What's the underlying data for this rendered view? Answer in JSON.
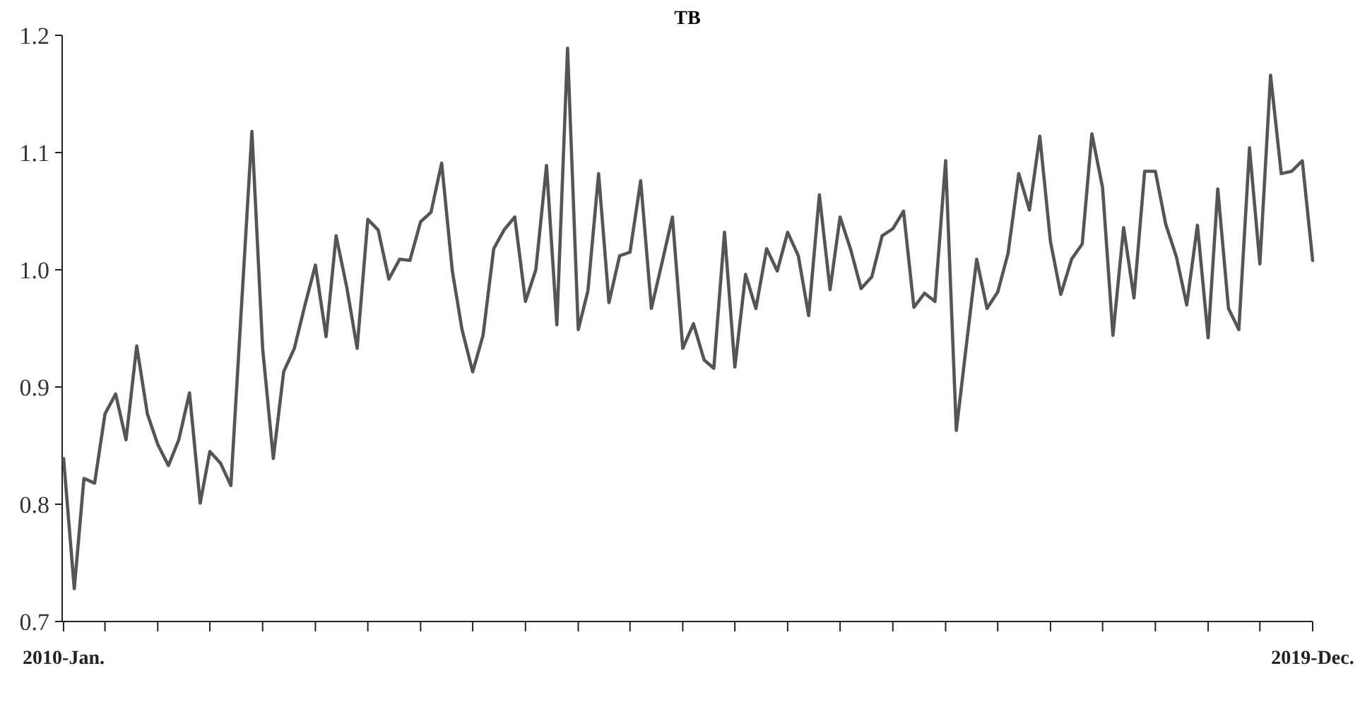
{
  "chart_data": {
    "type": "line",
    "title": "TB",
    "x": [
      "2010-01",
      "2010-02",
      "2010-03",
      "2010-04",
      "2010-05",
      "2010-06",
      "2010-07",
      "2010-08",
      "2010-09",
      "2010-10",
      "2010-11",
      "2010-12",
      "2011-01",
      "2011-02",
      "2011-03",
      "2011-04",
      "2011-05",
      "2011-06",
      "2011-07",
      "2011-08",
      "2011-09",
      "2011-10",
      "2011-11",
      "2011-12",
      "2012-01",
      "2012-02",
      "2012-03",
      "2012-04",
      "2012-05",
      "2012-06",
      "2012-07",
      "2012-08",
      "2012-09",
      "2012-10",
      "2012-11",
      "2012-12",
      "2013-01",
      "2013-02",
      "2013-03",
      "2013-04",
      "2013-05",
      "2013-06",
      "2013-07",
      "2013-08",
      "2013-09",
      "2013-10",
      "2013-11",
      "2013-12",
      "2014-01",
      "2014-02",
      "2014-03",
      "2014-04",
      "2014-05",
      "2014-06",
      "2014-07",
      "2014-08",
      "2014-09",
      "2014-10",
      "2014-11",
      "2014-12",
      "2015-01",
      "2015-02",
      "2015-03",
      "2015-04",
      "2015-05",
      "2015-06",
      "2015-07",
      "2015-08",
      "2015-09",
      "2015-10",
      "2015-11",
      "2015-12",
      "2016-01",
      "2016-02",
      "2016-03",
      "2016-04",
      "2016-05",
      "2016-06",
      "2016-07",
      "2016-08",
      "2016-09",
      "2016-10",
      "2016-11",
      "2016-12",
      "2017-01",
      "2017-02",
      "2017-03",
      "2017-04",
      "2017-05",
      "2017-06",
      "2017-07",
      "2017-08",
      "2017-09",
      "2017-10",
      "2017-11",
      "2017-12",
      "2018-01",
      "2018-02",
      "2018-03",
      "2018-04",
      "2018-05",
      "2018-06",
      "2018-07",
      "2018-08",
      "2018-09",
      "2018-10",
      "2018-11",
      "2018-12",
      "2019-01",
      "2019-02",
      "2019-03",
      "2019-04",
      "2019-05",
      "2019-06",
      "2019-07",
      "2019-08",
      "2019-09",
      "2019-10",
      "2019-11",
      "2019-12"
    ],
    "series": [
      {
        "color": "#555555",
        "values": [
          0.839,
          0.728,
          0.822,
          0.818,
          0.877,
          0.894,
          0.855,
          0.935,
          0.877,
          0.851,
          0.833,
          0.855,
          0.895,
          0.801,
          0.845,
          0.835,
          0.816,
          0.97,
          1.118,
          0.933,
          0.839,
          0.913,
          0.933,
          0.969,
          1.004,
          0.943,
          1.029,
          0.985,
          0.933,
          1.043,
          1.034,
          0.992,
          1.009,
          1.008,
          1.041,
          1.049,
          1.091,
          0.999,
          0.949,
          0.913,
          0.944,
          1.018,
          1.034,
          1.045,
          0.973,
          1.0,
          1.089,
          0.953,
          1.189,
          0.949,
          0.982,
          1.082,
          0.972,
          1.012,
          1.015,
          1.076,
          0.967,
          1.005,
          1.045,
          0.933,
          0.954,
          0.923,
          0.916,
          1.032,
          0.917,
          0.996,
          0.967,
          1.018,
          0.999,
          1.032,
          1.012,
          0.961,
          1.064,
          0.983,
          1.045,
          1.017,
          0.984,
          0.994,
          1.029,
          1.035,
          1.05,
          0.968,
          0.98,
          0.973,
          1.093,
          0.863,
          0.933,
          1.009,
          0.967,
          0.981,
          1.014,
          1.082,
          1.051,
          1.114,
          1.024,
          0.979,
          1.009,
          1.022,
          1.116,
          1.07,
          0.944,
          1.036,
          0.976,
          1.084,
          1.084,
          1.039,
          1.011,
          0.97,
          1.038,
          0.942,
          1.069,
          0.967,
          0.949,
          1.104,
          1.005,
          1.166,
          1.082,
          1.084,
          1.093,
          1.008
        ]
      }
    ],
    "xlim": [
      "2010-01",
      "2019-12"
    ],
    "xticks": [
      {
        "value": "2010-01",
        "label": "2010-Jan."
      },
      {
        "value": "2010-05",
        "label": null
      },
      {
        "value": "2010-10",
        "label": null
      },
      {
        "value": "2011-03",
        "label": null
      },
      {
        "value": "2011-08",
        "label": null
      },
      {
        "value": "2012-01",
        "label": null
      },
      {
        "value": "2012-06",
        "label": null
      },
      {
        "value": "2012-11",
        "label": null
      },
      {
        "value": "2013-04",
        "label": null
      },
      {
        "value": "2013-09",
        "label": null
      },
      {
        "value": "2014-02",
        "label": null
      },
      {
        "value": "2014-07",
        "label": null
      },
      {
        "value": "2014-12",
        "label": null
      },
      {
        "value": "2015-05",
        "label": null
      },
      {
        "value": "2015-10",
        "label": null
      },
      {
        "value": "2016-03",
        "label": null
      },
      {
        "value": "2016-08",
        "label": null
      },
      {
        "value": "2017-01",
        "label": null
      },
      {
        "value": "2017-06",
        "label": null
      },
      {
        "value": "2017-11",
        "label": null
      },
      {
        "value": "2018-04",
        "label": null
      },
      {
        "value": "2018-09",
        "label": null
      },
      {
        "value": "2019-02",
        "label": null
      },
      {
        "value": "2019-07",
        "label": null
      },
      {
        "value": "2019-12",
        "label": "2019-Dec."
      }
    ],
    "ylim": [
      0.7,
      1.2
    ],
    "yticks": [
      0.7,
      0.8,
      0.9,
      {
        "value": 1,
        "label": "1.0"
      },
      1.1,
      1.2
    ]
  }
}
